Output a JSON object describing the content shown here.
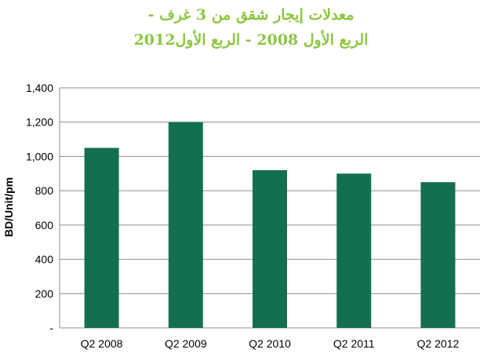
{
  "chart_data": {
    "type": "bar",
    "title_line1": "معدلات إيجار شقق من 3 غرف -",
    "title_line2": "الربع الأول 2008 - الربع الأول2012",
    "ylabel": "BD/Unit/pm",
    "xlabel": "",
    "categories": [
      "Q2 2008",
      "Q2 2009",
      "Q2 2010",
      "Q2 2011",
      "Q2 2012"
    ],
    "values": [
      1050,
      1200,
      920,
      900,
      850
    ],
    "ylim": [
      0,
      1400
    ],
    "y_ticks": [
      0,
      200,
      400,
      600,
      800,
      1000,
      1200,
      1400
    ],
    "y_tick_labels": [
      "-",
      "200",
      "400",
      "600",
      "800",
      "1,000",
      "1,200",
      "1,400"
    ],
    "grid": true,
    "legend": "none",
    "bar_color": "#146f50",
    "title_color": "#8cc63f",
    "grid_color": "#8c8c8c"
  }
}
